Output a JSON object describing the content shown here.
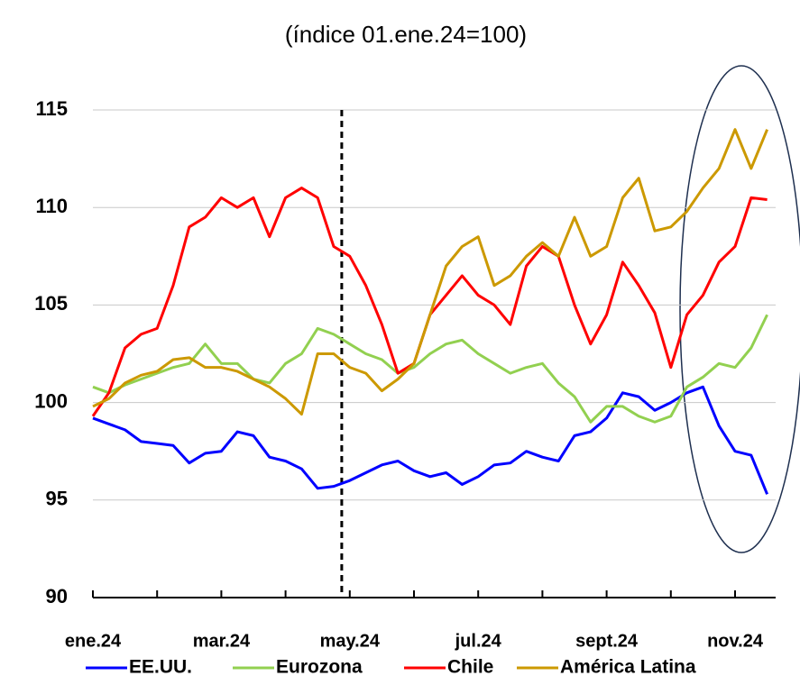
{
  "chart_data": {
    "type": "line",
    "title": "(índice 01.ene.24=100)",
    "categories": [
      "ene.24",
      null,
      null,
      null,
      null,
      null,
      null,
      null,
      "mar.24",
      null,
      null,
      null,
      null,
      null,
      null,
      null,
      "may.24",
      null,
      null,
      null,
      null,
      null,
      null,
      null,
      "jul.24",
      null,
      null,
      null,
      null,
      null,
      null,
      null,
      "sept.24",
      null,
      null,
      null,
      null,
      null,
      null,
      null,
      "nov.24",
      null,
      null
    ],
    "series": [
      {
        "name": "EE.UU.",
        "color": "#0000ff",
        "values": [
          99.2,
          98.9,
          98.6,
          98.0,
          97.9,
          97.8,
          96.9,
          97.4,
          97.5,
          98.5,
          98.3,
          97.2,
          97.0,
          96.6,
          95.6,
          95.7,
          96.0,
          96.4,
          96.8,
          97.0,
          96.5,
          96.2,
          96.4,
          95.8,
          96.2,
          96.8,
          96.9,
          97.5,
          97.2,
          97.0,
          98.3,
          98.5,
          99.2,
          100.5,
          100.3,
          99.6,
          100.0,
          100.5,
          100.8,
          98.8,
          97.5,
          97.3,
          95.3
        ]
      },
      {
        "name": "Eurozona",
        "color": "#92d050",
        "values": [
          100.8,
          100.5,
          100.9,
          101.2,
          101.5,
          101.8,
          102.0,
          103.0,
          102.0,
          102.0,
          101.2,
          101.0,
          102.0,
          102.5,
          103.8,
          103.5,
          103.0,
          102.5,
          102.2,
          101.5,
          101.8,
          102.5,
          103.0,
          103.2,
          102.5,
          102.0,
          101.5,
          101.8,
          102.0,
          101.0,
          100.3,
          99.0,
          99.8,
          99.8,
          99.3,
          99.0,
          99.3,
          100.8,
          101.3,
          102.0,
          101.8,
          102.8,
          104.5
        ]
      },
      {
        "name": "Chile",
        "color": "#ff0000",
        "values": [
          99.3,
          100.5,
          102.8,
          103.5,
          103.8,
          106.0,
          109.0,
          109.5,
          110.5,
          110.0,
          110.5,
          108.5,
          110.5,
          111.0,
          110.5,
          108.0,
          107.5,
          106.0,
          104.0,
          101.5,
          102.0,
          104.5,
          105.5,
          106.5,
          105.5,
          105.0,
          104.0,
          107.0,
          108.0,
          107.5,
          105.0,
          103.0,
          104.5,
          107.2,
          106.0,
          104.6,
          101.8,
          104.5,
          105.5,
          107.2,
          108.0,
          110.5,
          110.4
        ]
      },
      {
        "name": "América Latina",
        "color": "#cc9900",
        "values": [
          99.8,
          100.2,
          101.0,
          101.4,
          101.6,
          102.2,
          102.3,
          101.8,
          101.8,
          101.6,
          101.2,
          100.8,
          100.2,
          99.4,
          102.5,
          102.5,
          101.8,
          101.5,
          100.6,
          101.2,
          102.0,
          104.5,
          107.0,
          108.0,
          108.5,
          106.0,
          106.5,
          107.5,
          108.2,
          107.5,
          109.5,
          107.5,
          108.0,
          110.5,
          111.5,
          108.8,
          109.0,
          109.8,
          111.0,
          112.0,
          114.0,
          112.0,
          114.0
        ]
      }
    ],
    "ylim": [
      90,
      115
    ],
    "yticks": [
      90,
      95,
      100,
      105,
      110,
      115
    ],
    "grid": true,
    "legend": "bottom",
    "reference_line": {
      "x": 15.5,
      "style": "dashed"
    }
  }
}
